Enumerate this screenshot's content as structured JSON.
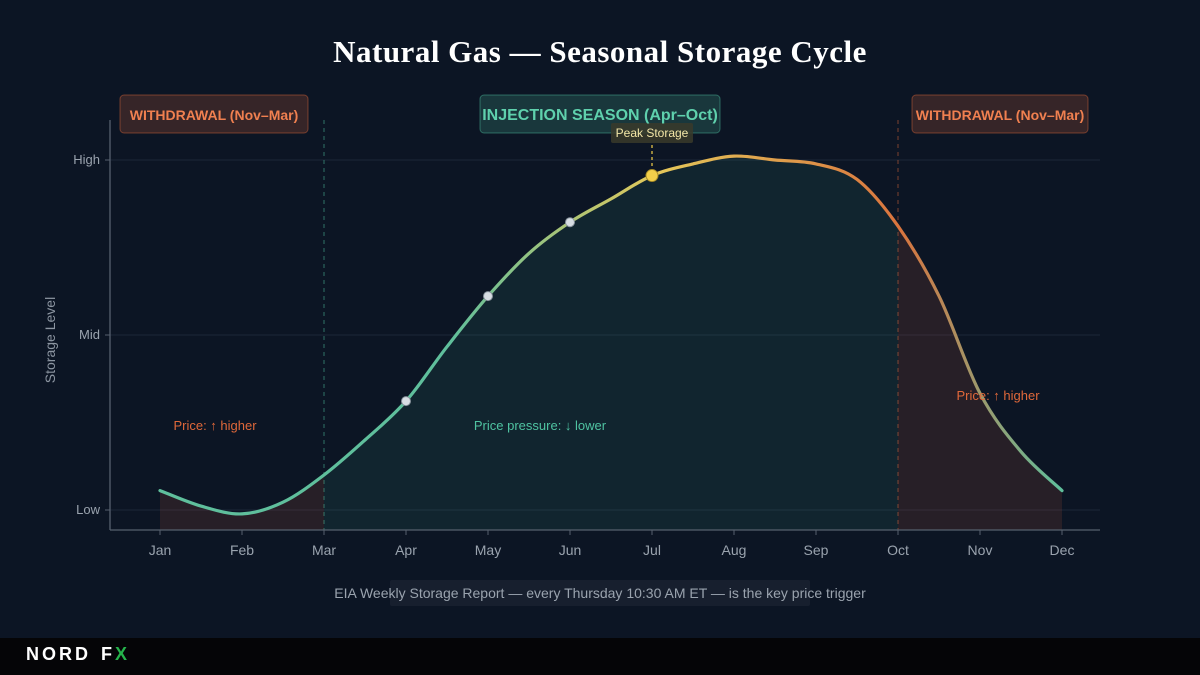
{
  "title": "Natural Gas — Seasonal Storage Cycle",
  "chart_data": {
    "type": "area",
    "title": "Natural Gas — Seasonal Storage Cycle",
    "ylabel": "Storage Level",
    "xlabel": "",
    "categories": [
      "Jan",
      "Feb",
      "Mar",
      "Apr",
      "May",
      "Jun",
      "Jul",
      "Aug",
      "Sep",
      "Oct",
      "Nov",
      "Dec"
    ],
    "ytick_labels": [
      {
        "label": "Low",
        "value": 0.05
      },
      {
        "label": "Mid",
        "value": 0.5
      },
      {
        "label": "High",
        "value": 0.95
      }
    ],
    "ylim": [
      -0.0,
      1.05
    ],
    "series": [
      {
        "name": "",
        "x": [
          1,
          1.5,
          2,
          2.5,
          3,
          3.5,
          4,
          4.5,
          5,
          5.5,
          6,
          6.5,
          7,
          7.5,
          8,
          8.5,
          9,
          9.5,
          10,
          10.5,
          11,
          11.5,
          12
        ],
        "values": [
          0.1,
          0.06,
          0.04,
          0.07,
          0.14,
          0.23,
          0.33,
          0.47,
          0.6,
          0.71,
          0.79,
          0.85,
          0.91,
          0.94,
          0.96,
          0.95,
          0.94,
          0.9,
          0.78,
          0.6,
          0.35,
          0.2,
          0.1
        ]
      }
    ],
    "markers": [
      {
        "x": 4,
        "y": 0.33
      },
      {
        "x": 5,
        "y": 0.6
      },
      {
        "x": 6,
        "y": 0.79
      },
      {
        "x": 7,
        "y": 0.91
      }
    ],
    "regions": [
      {
        "label": "WITHDRAWAL (Nov–Mar)",
        "x_start": 1,
        "x_end": 3,
        "color": "#e0683a",
        "price_label": "Price: ↑ higher"
      },
      {
        "label": "INJECTION SEASON (Apr–Oct)",
        "x_start": 3,
        "x_end": 10,
        "color": "#4fc3a1",
        "price_label": "Price pressure: ↓ lower"
      },
      {
        "label": "WITHDRAWAL (Nov–Mar)",
        "x_start": 10,
        "x_end": 12,
        "color": "#e0683a",
        "price_label": "Price: ↑ higher"
      }
    ],
    "annotations": [
      {
        "text": "Peak Storage",
        "x": 7,
        "y": 0.91
      }
    ],
    "note": "EIA Weekly Storage Report — every Thursday 10:30 AM ET — is the key price trigger",
    "grid": true,
    "legend": "none"
  },
  "branding": {
    "logo_left": "NORD",
    "logo_right_f": "F",
    "logo_right_x": "X"
  },
  "colors": {
    "background": "#0c1524",
    "injection": "#4fc3a1",
    "withdrawal": "#e0683a",
    "peak": "#f2cf4a",
    "curve_start": "#5fbf9c",
    "curve_peak": "#e4c85a",
    "curve_drop": "#d9743e"
  }
}
